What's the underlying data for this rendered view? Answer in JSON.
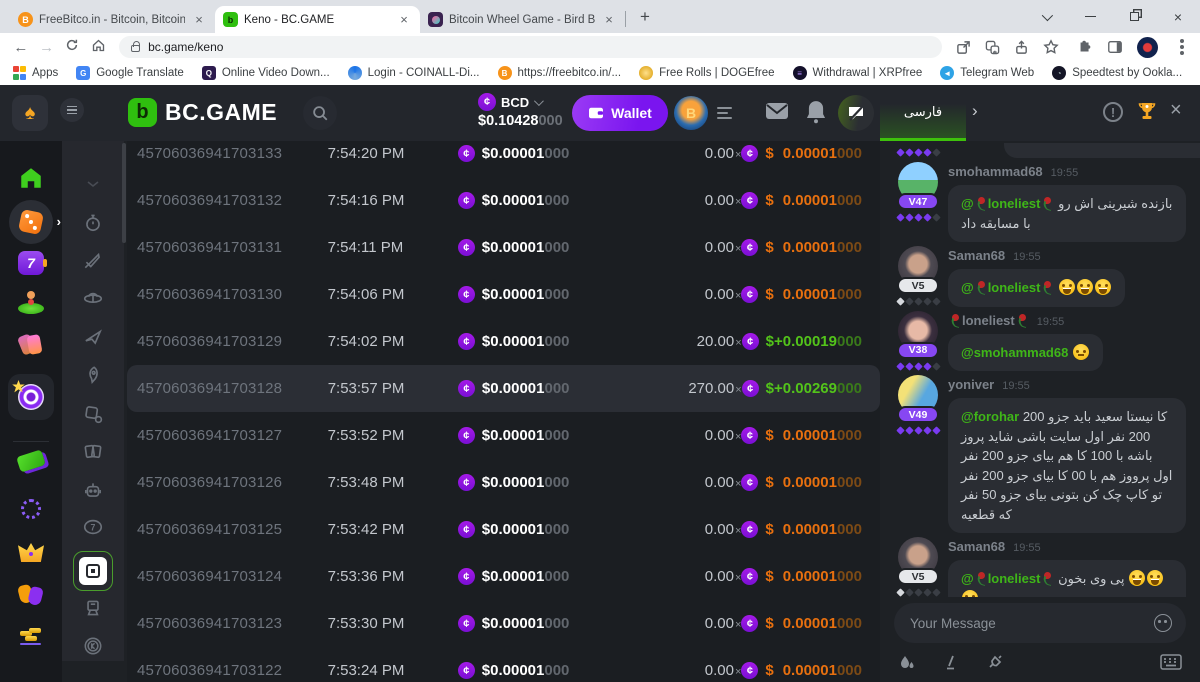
{
  "browser": {
    "tabs": [
      {
        "title": "FreeBitco.in - Bitcoin, Bitcoin Pric"
      },
      {
        "title": "Keno - BC.GAME"
      },
      {
        "title": "Bitcoin Wheel Game - Bird Based"
      }
    ],
    "url": "bc.game/keno",
    "bookmarks": [
      "Apps",
      "Google Translate",
      "Online Video Down...",
      "Login - COINALL-Di...",
      "https://freebitco.in/...",
      "Free Rolls | DOGEfree",
      "Withdrawal | XRPfree",
      "Telegram Web",
      "Speedtest by Ookla..."
    ],
    "bookmarks_overflow": "»"
  },
  "header": {
    "brand": "BC.GAME",
    "currency": "BCD",
    "coin_symbol": "¢",
    "balance_main": "$0.10428",
    "balance_dim": "000",
    "wallet_label": "Wallet",
    "chat_tab": "فارسی"
  },
  "colors": {
    "brand_green": "#2fbf0f",
    "accent_purple": "#7a15ef",
    "win_green": "#53c41a",
    "loss_orange": "#e8700f",
    "mention_green": "#3fb618",
    "trophy_gold": "#f5a623"
  },
  "sidebar": {
    "main_icons": [
      "home",
      "dice",
      "slots-seven",
      "live-casino",
      "promotions",
      "bc-originals-target",
      "lottery-ticket",
      "roulette-ring",
      "vip-crown",
      "party-masks",
      "staking-coins"
    ],
    "sub_icons": [
      "scroll-chevron",
      "crash-timer",
      "sword",
      "wheel",
      "plinko",
      "rocket",
      "dice-chip",
      "cards",
      "hilo-robot",
      "lucky-seven",
      "keno-active",
      "tower",
      "token-k"
    ]
  },
  "table": {
    "mult_suffix": "×",
    "rows": [
      {
        "id": "45706036941703133",
        "time": "7:54:20 PM",
        "bet_main": "$0.00001",
        "bet_dim": "000",
        "mult": "0.00",
        "payout_prefix": "$",
        "payout_main": "0.00001",
        "payout_dim": "000",
        "win": false,
        "highlight": false
      },
      {
        "id": "45706036941703132",
        "time": "7:54:16 PM",
        "bet_main": "$0.00001",
        "bet_dim": "000",
        "mult": "0.00",
        "payout_prefix": "$",
        "payout_main": "0.00001",
        "payout_dim": "000",
        "win": false,
        "highlight": false
      },
      {
        "id": "45706036941703131",
        "time": "7:54:11 PM",
        "bet_main": "$0.00001",
        "bet_dim": "000",
        "mult": "0.00",
        "payout_prefix": "$",
        "payout_main": "0.00001",
        "payout_dim": "000",
        "win": false,
        "highlight": false
      },
      {
        "id": "45706036941703130",
        "time": "7:54:06 PM",
        "bet_main": "$0.00001",
        "bet_dim": "000",
        "mult": "0.00",
        "payout_prefix": "$",
        "payout_main": "0.00001",
        "payout_dim": "000",
        "win": false,
        "highlight": false
      },
      {
        "id": "45706036941703129",
        "time": "7:54:02 PM",
        "bet_main": "$0.00001",
        "bet_dim": "000",
        "mult": "20.00",
        "payout_prefix": "$+",
        "payout_main": "0.00019",
        "payout_dim": "000",
        "win": true,
        "highlight": false
      },
      {
        "id": "45706036941703128",
        "time": "7:53:57 PM",
        "bet_main": "$0.00001",
        "bet_dim": "000",
        "mult": "270.00",
        "payout_prefix": "$+",
        "payout_main": "0.00269",
        "payout_dim": "000",
        "win": true,
        "highlight": true
      },
      {
        "id": "45706036941703127",
        "time": "7:53:52 PM",
        "bet_main": "$0.00001",
        "bet_dim": "000",
        "mult": "0.00",
        "payout_prefix": "$",
        "payout_main": "0.00001",
        "payout_dim": "000",
        "win": false,
        "highlight": false
      },
      {
        "id": "45706036941703126",
        "time": "7:53:48 PM",
        "bet_main": "$0.00001",
        "bet_dim": "000",
        "mult": "0.00",
        "payout_prefix": "$",
        "payout_main": "0.00001",
        "payout_dim": "000",
        "win": false,
        "highlight": false
      },
      {
        "id": "45706036941703125",
        "time": "7:53:42 PM",
        "bet_main": "$0.00001",
        "bet_dim": "000",
        "mult": "0.00",
        "payout_prefix": "$",
        "payout_main": "0.00001",
        "payout_dim": "000",
        "win": false,
        "highlight": false
      },
      {
        "id": "45706036941703124",
        "time": "7:53:36 PM",
        "bet_main": "$0.00001",
        "bet_dim": "000",
        "mult": "0.00",
        "payout_prefix": "$",
        "payout_main": "0.00001",
        "payout_dim": "000",
        "win": false,
        "highlight": false
      },
      {
        "id": "45706036941703123",
        "time": "7:53:30 PM",
        "bet_main": "$0.00001",
        "bet_dim": "000",
        "mult": "0.00",
        "payout_prefix": "$",
        "payout_main": "0.00001",
        "payout_dim": "000",
        "win": false,
        "highlight": false
      },
      {
        "id": "45706036941703122",
        "time": "7:53:24 PM",
        "bet_main": "$0.00001",
        "bet_dim": "000",
        "mult": "0.00",
        "payout_prefix": "$",
        "payout_main": "0.00001",
        "payout_dim": "000",
        "win": false,
        "highlight": false
      }
    ]
  },
  "chat": {
    "input_placeholder": "Your Message",
    "messages": [
      {
        "type": "partial",
        "stars": 4
      },
      {
        "user": "smohammad68",
        "time": "19:55",
        "vip": "V47",
        "vip_style": "purple",
        "stars": 4,
        "avatar": "scenic",
        "parts": [
          {
            "t": "m",
            "v": "loneliest",
            "rose": true
          },
          {
            "t": "t",
            "v": "بازنده شیرینی اش رو با مسابقه داد"
          }
        ]
      },
      {
        "user": "Saman68",
        "time": "19:55",
        "vip": "V5",
        "vip_style": "light",
        "stars": 1,
        "avatar": "man",
        "parts": [
          {
            "t": "m",
            "v": "loneliest",
            "rose": true
          },
          {
            "t": "e",
            "v": "grin"
          },
          {
            "t": "e",
            "v": "grin"
          },
          {
            "t": "e",
            "v": "grin"
          }
        ]
      },
      {
        "user": "loneliest",
        "user_roses": true,
        "time": "19:55",
        "vip": "V38",
        "vip_style": "purple",
        "stars": 4,
        "avatar": "girl",
        "parts": [
          {
            "t": "m",
            "v": "smohammad68"
          },
          {
            "t": "e",
            "v": "neutral"
          }
        ]
      },
      {
        "user": "yoniver",
        "time": "19:55",
        "vip": "V49",
        "vip_style": "purple",
        "stars": 5,
        "avatar": "toon",
        "parts": [
          {
            "t": "m",
            "v": "forohar"
          },
          {
            "t": "t",
            "v": "200 کا نیستا سعید باید جزو 200 نفر اول سایت باشی شاید پروز باشه با 100 کا هم بیای جزو 200 نفر اول پرووز هم با 00 کا بیای جزو 200 نفر تو کاپ چک کن بتونی بیای جزو 50 نفر که قطعیه"
          }
        ]
      },
      {
        "user": "Saman68",
        "time": "19:55",
        "vip": "V5",
        "vip_style": "light",
        "stars": 1,
        "avatar": "man",
        "parts": [
          {
            "t": "m",
            "v": "loneliest",
            "rose": true
          },
          {
            "t": "t",
            "v": "پی وی بخون"
          },
          {
            "t": "e",
            "v": "grin"
          },
          {
            "t": "e",
            "v": "grin"
          },
          {
            "t": "e",
            "v": "grin"
          }
        ]
      }
    ]
  }
}
